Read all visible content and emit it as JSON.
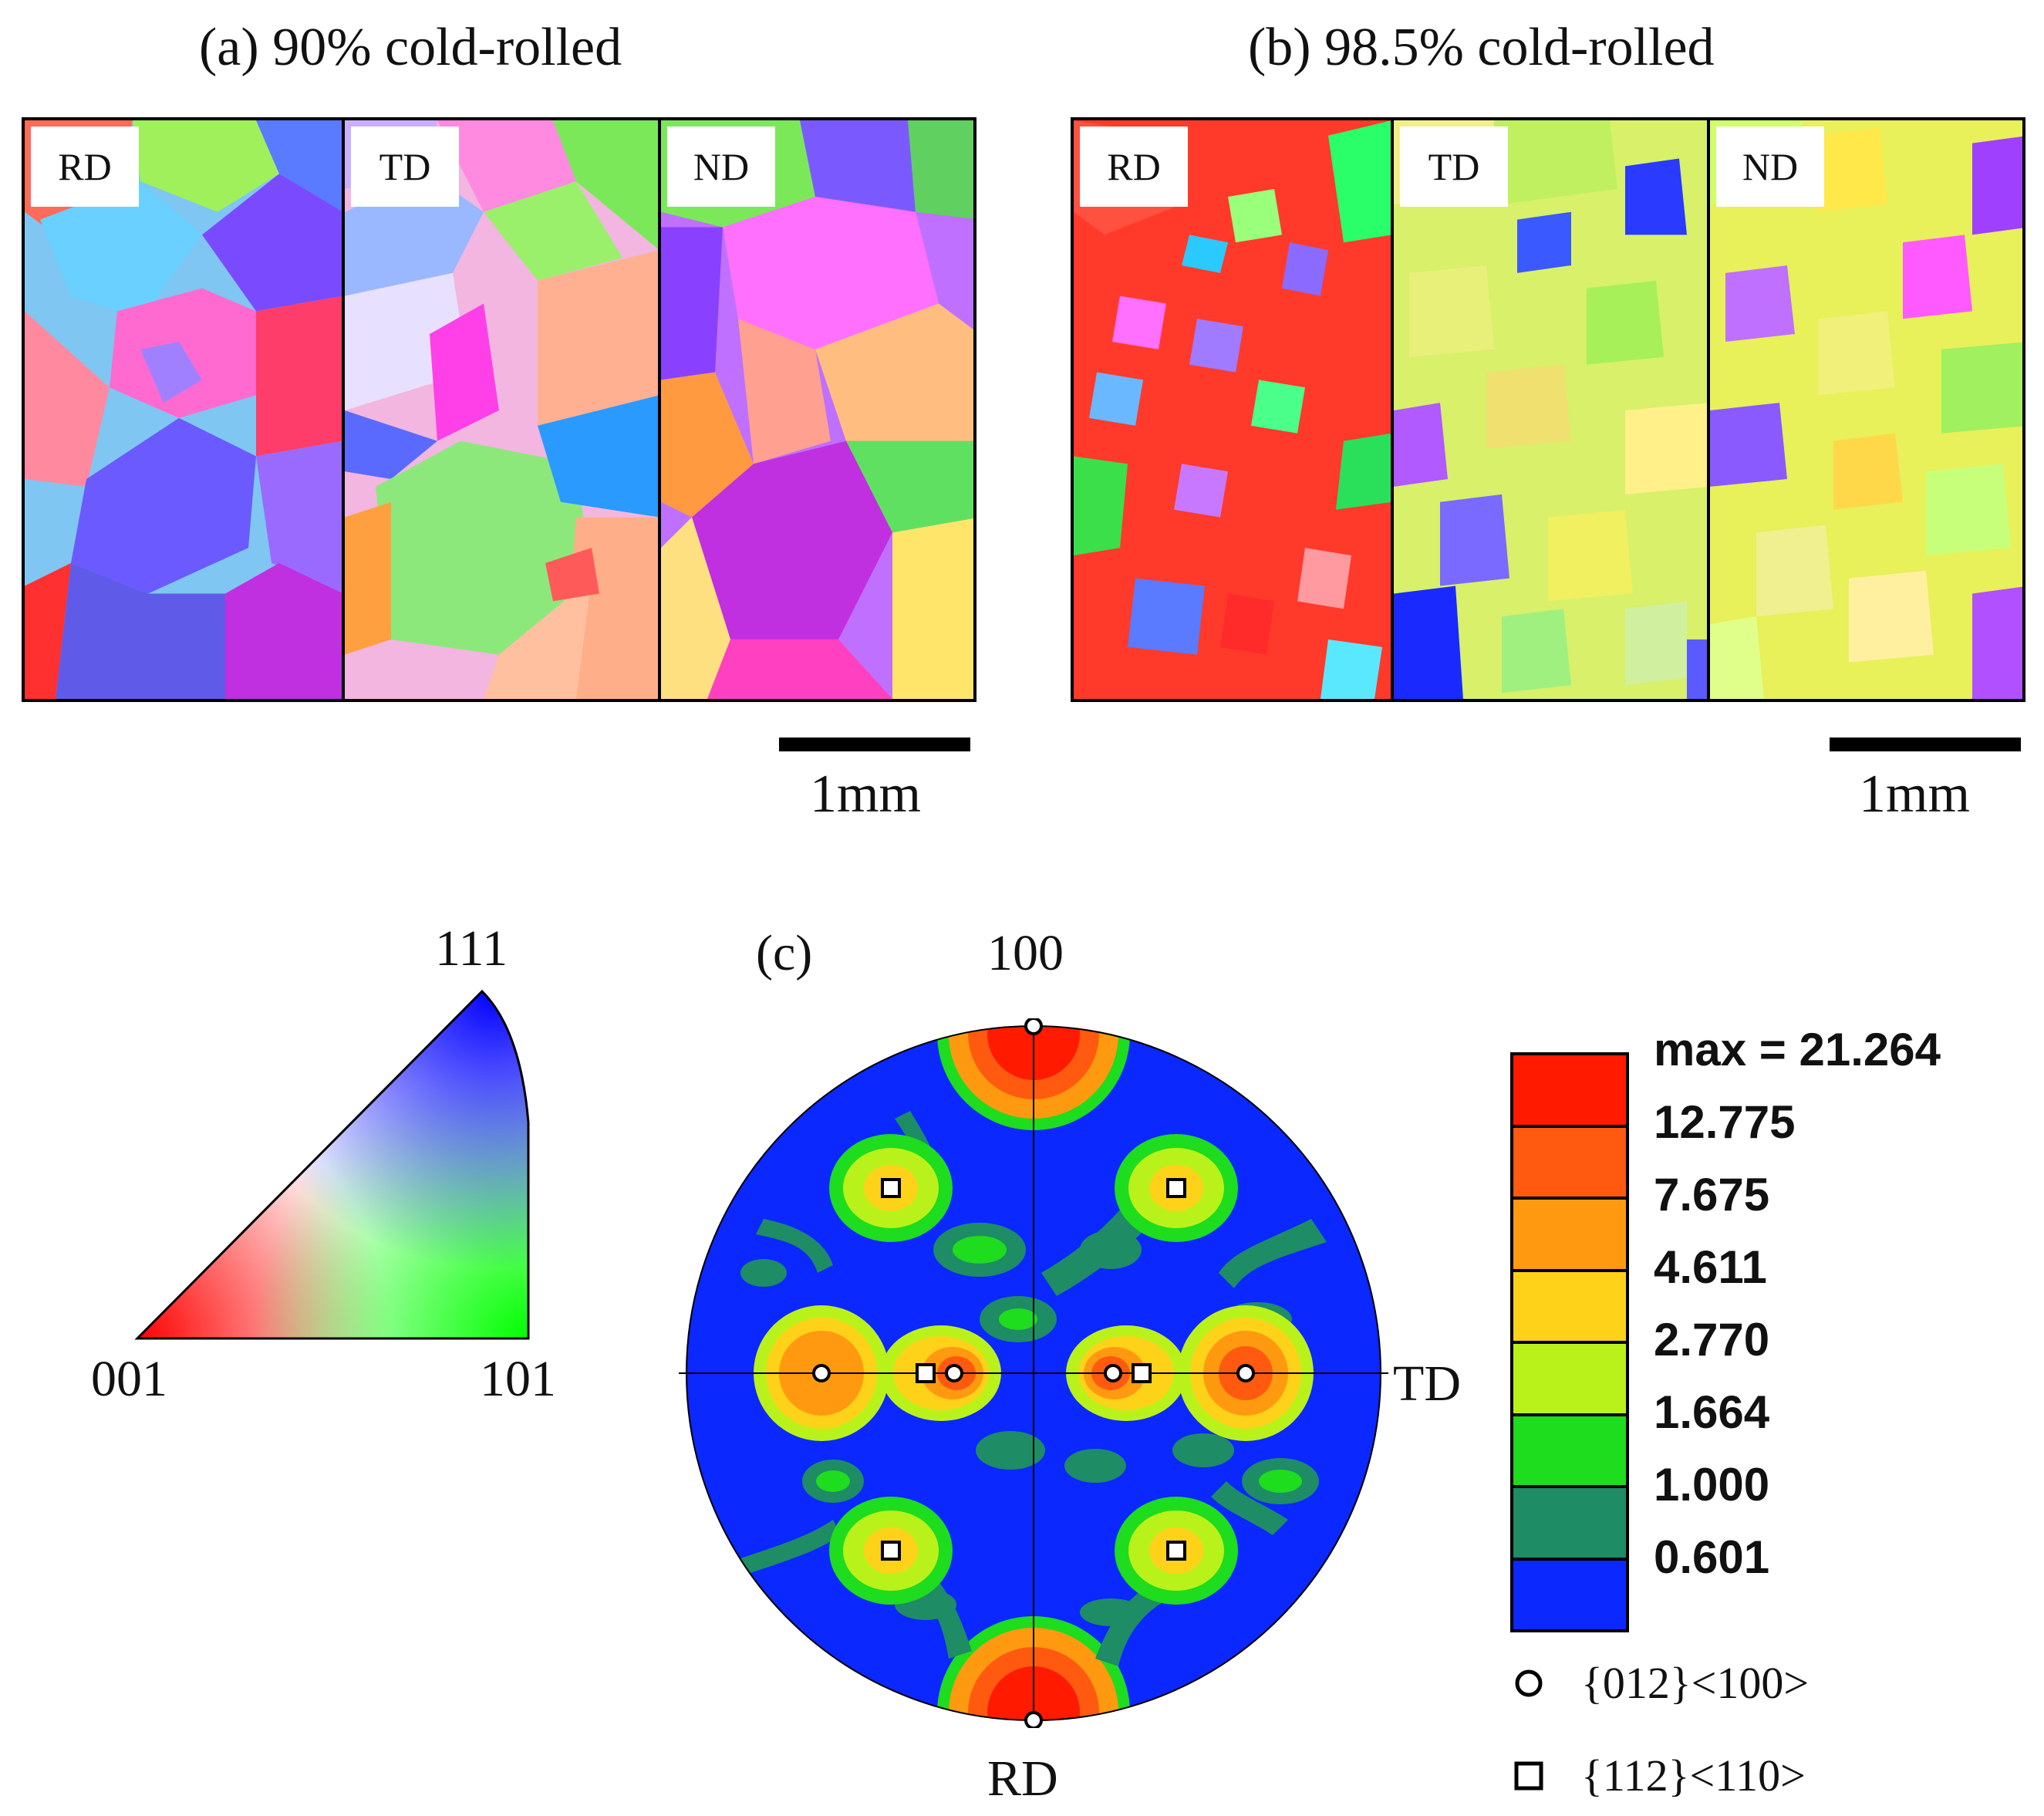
{
  "panel_a": {
    "title": "(a) 90% cold-rolled",
    "maps": [
      {
        "label": "RD"
      },
      {
        "label": "TD"
      },
      {
        "label": "ND"
      }
    ],
    "scale_label": "1mm"
  },
  "panel_b": {
    "title": "(b) 98.5% cold-rolled",
    "maps": [
      {
        "label": "RD"
      },
      {
        "label": "TD"
      },
      {
        "label": "ND"
      }
    ],
    "scale_label": "1mm"
  },
  "ipf_key": {
    "corner_001": "001",
    "corner_101": "101",
    "corner_111": "111"
  },
  "pole_figure": {
    "panel_label": "(c)",
    "top_label": "100",
    "right_label": "TD",
    "bottom_label": "RD",
    "legend": {
      "max_label": "max = 21.264",
      "levels": [
        "12.775",
        "7.675",
        "4.611",
        "2.770",
        "1.664",
        "1.000",
        "0.601"
      ],
      "colors": [
        "#ff1a00",
        "#ff5a10",
        "#ff9a10",
        "#ffd21a",
        "#b9f21a",
        "#1edc1e",
        "#1e8c64",
        "#0a28ff"
      ]
    },
    "markers": [
      {
        "shape": "circle",
        "label": "{012}<100>"
      },
      {
        "shape": "square",
        "label": "{112}<110>"
      }
    ]
  }
}
